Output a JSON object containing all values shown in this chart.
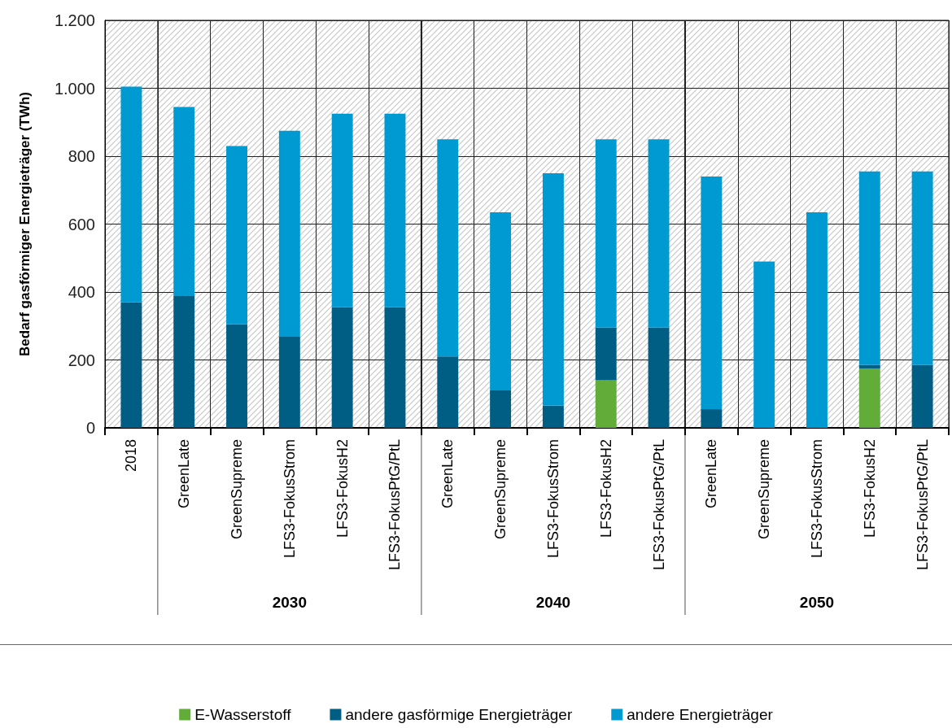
{
  "chart_data": {
    "type": "bar",
    "stacked": true,
    "ylabel": "Bedarf gasförmiger Energieträger (TWh)",
    "categories": [
      "2018",
      "GreenLate",
      "GreenSupreme",
      "LFS3-FokusStrom",
      "LFS3-FokusH2",
      "LFS3-FokusPtG/PtL",
      "GreenLate",
      "GreenSupreme",
      "LFS3-FokusStrom",
      "LFS3-FokusH2",
      "LFS3-FokusPtG/PtL",
      "GreenLate",
      "GreenSupreme",
      "LFS3-FokusStrom",
      "LFS3-FokusH2",
      "LFS3-FokusPtG/PtL"
    ],
    "series": [
      {
        "name": "E-Wasserstoff",
        "color": "#62ad39",
        "values": [
          0,
          0,
          0,
          0,
          0,
          0,
          0,
          0,
          0,
          140,
          0,
          0,
          0,
          0,
          175,
          0
        ]
      },
      {
        "name": "andere gasförmige Energieträger",
        "color": "#005e85",
        "values": [
          370,
          390,
          305,
          270,
          355,
          355,
          210,
          110,
          65,
          155,
          295,
          55,
          0,
          0,
          10,
          185
        ]
      },
      {
        "name": "andere Energieträger",
        "color": "#009ad3",
        "values": [
          635,
          555,
          525,
          605,
          570,
          570,
          640,
          525,
          685,
          555,
          555,
          685,
          490,
          635,
          570,
          570
        ]
      }
    ],
    "ylim": [
      0,
      1200
    ],
    "yticks": [
      0,
      200,
      400,
      600,
      800,
      {
        "value": 1000,
        "label": "1.000"
      },
      {
        "value": 1200,
        "label": "1.200"
      }
    ],
    "grid": true,
    "legend": "bottom",
    "annotations": [
      "2030",
      "2040",
      "2050"
    ]
  }
}
